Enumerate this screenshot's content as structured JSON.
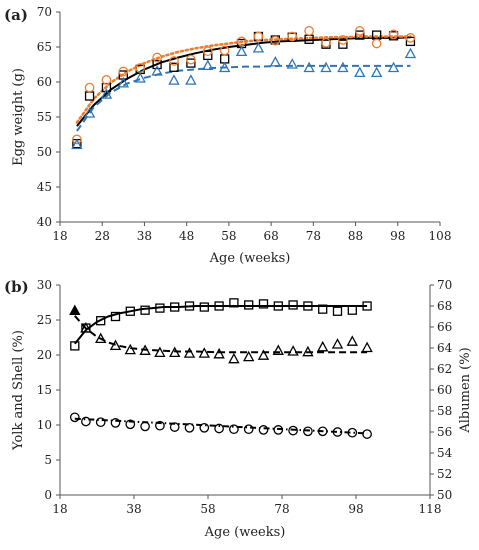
{
  "chart_data": [
    {
      "type": "scatter",
      "panel_label": "(a)",
      "xlabel": "Age (weeks)",
      "ylabel": "Egg weight (g)",
      "xlim": [
        18,
        108
      ],
      "ylim": [
        40,
        70
      ],
      "xticks": [
        18,
        28,
        38,
        48,
        58,
        68,
        78,
        88,
        98,
        108
      ],
      "yticks": [
        40,
        45,
        50,
        55,
        60,
        65,
        70
      ],
      "grid": false,
      "legend": "none",
      "series": [
        {
          "marker": "square",
          "color": "#000000",
          "x": [
            22,
            25,
            29,
            33,
            37,
            41,
            45,
            49,
            53,
            57,
            61,
            65,
            69,
            73,
            77,
            81,
            85,
            89,
            93,
            97,
            101
          ],
          "y": [
            51.2,
            58.0,
            59.2,
            61.0,
            61.8,
            62.5,
            62.1,
            62.7,
            63.8,
            63.3,
            65.5,
            66.5,
            66.0,
            66.4,
            66.1,
            65.4,
            65.4,
            66.7,
            66.7,
            66.6,
            65.8
          ],
          "fit_line": "solid",
          "fit_curve": [
            [
              22,
              53.7
            ],
            [
              26,
              56.7
            ],
            [
              30,
              58.9
            ],
            [
              34,
              60.5
            ],
            [
              38,
              61.8
            ],
            [
              42,
              62.8
            ],
            [
              46,
              63.5
            ],
            [
              50,
              64.1
            ],
            [
              54,
              64.6
            ],
            [
              58,
              65.0
            ],
            [
              62,
              65.3
            ],
            [
              66,
              65.6
            ],
            [
              70,
              65.8
            ],
            [
              74,
              65.9
            ],
            [
              78,
              66.0
            ],
            [
              82,
              66.1
            ],
            [
              86,
              66.2
            ],
            [
              90,
              66.3
            ],
            [
              94,
              66.3
            ],
            [
              98,
              66.3
            ],
            [
              101,
              66.4
            ]
          ]
        },
        {
          "marker": "circle",
          "color": "#ed7d31",
          "x": [
            22,
            25,
            29,
            33,
            37,
            41,
            45,
            49,
            53,
            57,
            61,
            65,
            69,
            73,
            77,
            81,
            85,
            89,
            93,
            97,
            101
          ],
          "y": [
            51.8,
            59.2,
            60.3,
            61.5,
            62.0,
            63.5,
            63.0,
            63.2,
            64.4,
            64.5,
            65.8,
            66.5,
            65.9,
            66.5,
            67.3,
            65.6,
            66.0,
            67.3,
            65.5,
            66.8,
            66.3
          ],
          "fit_line": "dotted",
          "fit_curve": [
            [
              22,
              54.2
            ],
            [
              26,
              57.6
            ],
            [
              30,
              59.9
            ],
            [
              34,
              61.5
            ],
            [
              38,
              62.7
            ],
            [
              42,
              63.6
            ],
            [
              46,
              64.3
            ],
            [
              50,
              64.8
            ],
            [
              54,
              65.2
            ],
            [
              58,
              65.5
            ],
            [
              62,
              65.8
            ],
            [
              66,
              66.0
            ],
            [
              70,
              66.1
            ],
            [
              74,
              66.2
            ],
            [
              78,
              66.3
            ],
            [
              82,
              66.4
            ],
            [
              86,
              66.4
            ],
            [
              90,
              66.5
            ],
            [
              94,
              66.5
            ],
            [
              98,
              66.5
            ],
            [
              101,
              66.5
            ]
          ]
        },
        {
          "marker": "triangle",
          "color": "#2e75b6",
          "x": [
            22,
            25,
            29,
            33,
            37,
            41,
            45,
            49,
            53,
            57,
            61,
            65,
            69,
            73,
            77,
            81,
            85,
            89,
            93,
            97,
            101
          ],
          "y": [
            51.0,
            55.5,
            58.2,
            59.8,
            60.5,
            61.5,
            60.2,
            60.2,
            62.3,
            62.0,
            64.3,
            64.8,
            62.8,
            62.5,
            62.0,
            62.0,
            62.0,
            61.3,
            61.3,
            62.0,
            64.0
          ],
          "fit_line": "dashed",
          "fit_curve": [
            [
              22,
              53.0
            ],
            [
              26,
              56.4
            ],
            [
              30,
              58.5
            ],
            [
              34,
              59.8
            ],
            [
              38,
              60.6
            ],
            [
              42,
              61.2
            ],
            [
              46,
              61.6
            ],
            [
              50,
              61.8
            ],
            [
              54,
              62.0
            ],
            [
              58,
              62.1
            ],
            [
              62,
              62.2
            ],
            [
              66,
              62.2
            ],
            [
              70,
              62.3
            ],
            [
              74,
              62.3
            ],
            [
              78,
              62.3
            ],
            [
              82,
              62.3
            ],
            [
              86,
              62.3
            ],
            [
              90,
              62.3
            ],
            [
              94,
              62.3
            ],
            [
              98,
              62.3
            ],
            [
              101,
              62.3
            ]
          ]
        }
      ]
    },
    {
      "type": "scatter",
      "panel_label": "(b)",
      "xlabel": "Age (weeks)",
      "ylabel": "Yolk and Shell (%)",
      "y2label": "Albumen (%)",
      "xlim": [
        18,
        118
      ],
      "ylim": [
        0,
        30
      ],
      "y2lim": [
        50,
        70
      ],
      "xticks": [
        18,
        38,
        58,
        78,
        98,
        118
      ],
      "yticks": [
        0,
        5,
        10,
        15,
        20,
        25,
        30
      ],
      "y2ticks": [
        50,
        52,
        54,
        56,
        58,
        60,
        62,
        64,
        66,
        68,
        70
      ],
      "grid": false,
      "legend": "none",
      "series": [
        {
          "marker": "square",
          "axis": "right",
          "x": [
            22,
            25,
            29,
            33,
            37,
            41,
            45,
            49,
            53,
            57,
            61,
            65,
            69,
            73,
            77,
            81,
            85,
            89,
            93,
            97,
            101
          ],
          "y": [
            64.2,
            65.9,
            66.6,
            67.0,
            67.5,
            67.6,
            67.8,
            67.9,
            68.0,
            67.9,
            68.0,
            68.3,
            68.1,
            68.2,
            68.0,
            68.1,
            68.0,
            67.7,
            67.5,
            67.6,
            68.0
          ],
          "fit_line": "solid",
          "fit_curve": [
            [
              22,
              64.4
            ],
            [
              25,
              65.7
            ],
            [
              28,
              66.5
            ],
            [
              31,
              67.0
            ],
            [
              34,
              67.3
            ],
            [
              37,
              67.5
            ],
            [
              40,
              67.7
            ],
            [
              43,
              67.8
            ],
            [
              46,
              67.9
            ],
            [
              50,
              67.9
            ],
            [
              55,
              68.0
            ],
            [
              60,
              68.0
            ],
            [
              65,
              68.0
            ],
            [
              70,
              68.0
            ],
            [
              75,
              68.0
            ],
            [
              80,
              68.0
            ],
            [
              85,
              68.0
            ],
            [
              90,
              68.0
            ],
            [
              95,
              68.0
            ],
            [
              101,
              68.0
            ]
          ]
        },
        {
          "marker": "triangle",
          "axis": "left",
          "filled_first": true,
          "x": [
            22,
            25,
            29,
            33,
            37,
            41,
            45,
            49,
            53,
            57,
            61,
            65,
            69,
            73,
            77,
            81,
            85,
            89,
            93,
            97,
            101
          ],
          "y": [
            26.3,
            23.8,
            22.3,
            21.3,
            20.7,
            20.6,
            20.3,
            20.3,
            20.2,
            20.2,
            20.1,
            19.4,
            19.7,
            19.9,
            20.6,
            20.5,
            20.4,
            21.1,
            21.5,
            21.9,
            21.0
          ],
          "fit_line": "dashed",
          "fit_curve": [
            [
              22,
              25.6
            ],
            [
              25,
              23.8
            ],
            [
              28,
              22.6
            ],
            [
              31,
              21.8
            ],
            [
              34,
              21.3
            ],
            [
              37,
              21.0
            ],
            [
              40,
              20.8
            ],
            [
              43,
              20.7
            ],
            [
              46,
              20.6
            ],
            [
              50,
              20.5
            ],
            [
              55,
              20.5
            ],
            [
              60,
              20.4
            ],
            [
              65,
              20.4
            ],
            [
              70,
              20.4
            ],
            [
              75,
              20.4
            ],
            [
              80,
              20.4
            ],
            [
              85,
              20.4
            ],
            [
              90,
              20.4
            ],
            [
              95,
              20.4
            ],
            [
              101,
              20.4
            ]
          ]
        },
        {
          "marker": "circle",
          "axis": "left",
          "x": [
            22,
            25,
            29,
            33,
            37,
            41,
            45,
            49,
            53,
            57,
            61,
            65,
            69,
            73,
            77,
            81,
            85,
            89,
            93,
            97,
            101
          ],
          "y": [
            11.1,
            10.5,
            10.4,
            10.3,
            10.1,
            9.8,
            9.9,
            9.7,
            9.6,
            9.6,
            9.5,
            9.4,
            9.4,
            9.3,
            9.3,
            9.2,
            9.1,
            9.1,
            9.0,
            8.9,
            8.7
          ],
          "fit_line": "dash-dot",
          "fit_curve": [
            [
              22,
              10.9
            ],
            [
              101,
              8.8
            ]
          ]
        }
      ]
    }
  ]
}
